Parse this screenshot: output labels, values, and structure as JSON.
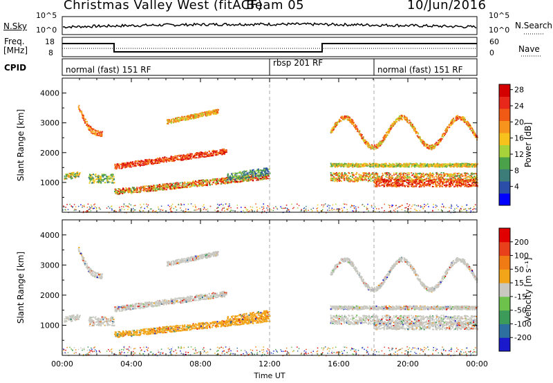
{
  "header": {
    "title": "Christmas Valley West (fitACF)",
    "beam": "Beam 05",
    "date": "10/Jun/2016"
  },
  "panels": {
    "sky_label": "N.Sky",
    "search_label": "N.Search",
    "freq_label_1": "Freq.",
    "freq_label_2": "[MHz]",
    "nave_label": "Nave",
    "cpid_label": "CPID",
    "sky_left_ticks": [
      "10^5",
      "10^0"
    ],
    "sky_right_ticks": [
      "10^5",
      "10^0"
    ],
    "freq_left_ticks": [
      "18",
      "8"
    ],
    "freq_right_ticks": [
      "60",
      "0"
    ]
  },
  "cpid_segments": [
    {
      "label": "normal (fast) 151 RF",
      "start": 0,
      "end": 12
    },
    {
      "label": "rbsp 201 RF",
      "start": 12,
      "end": 18
    },
    {
      "label": "normal (fast) 151 RF",
      "start": 18,
      "end": 24
    }
  ],
  "chart_data": [
    {
      "type": "heatmap",
      "panel": "power",
      "ylabel": "Slant Range [km]",
      "xlabel": "Time UT",
      "xlim": [
        0,
        24
      ],
      "ylim": [
        0,
        4500
      ],
      "yticks": [
        "1000",
        "2000",
        "3000",
        "4000"
      ],
      "xticks": [
        "00:00",
        "04:00",
        "08:00",
        "12:00",
        "16:00",
        "20:00",
        "00:00"
      ],
      "colorbar": {
        "label": "Power [dB]",
        "ticks": [
          "4",
          "8",
          "12",
          "16",
          "20",
          "24",
          "28"
        ],
        "colors": [
          "#0000ff",
          "#2b4fa8",
          "#3c7d7a",
          "#4aa14a",
          "#a8d23a",
          "#f6c21b",
          "#f7941d",
          "#f05a14",
          "#e8281b",
          "#d40000"
        ]
      }
    },
    {
      "type": "heatmap",
      "panel": "velocity",
      "ylabel": "Slant Range [km]",
      "xlabel": "Time UT",
      "xlim": [
        0,
        24
      ],
      "ylim": [
        0,
        4500
      ],
      "yticks": [
        "1000",
        "2000",
        "3000",
        "4000"
      ],
      "xticks": [
        "00:00",
        "04:00",
        "08:00",
        "12:00",
        "16:00",
        "20:00",
        "00:00"
      ],
      "colorbar": {
        "label": "Velocity [m s⁻¹]",
        "ticks": [
          "200",
          "100",
          "50",
          "15",
          "-15",
          "-50",
          "-100",
          "-200"
        ],
        "colors": [
          "#1a1acc",
          "#2d6f9e",
          "#3d9b5a",
          "#6cc24a",
          "#c8c8c0",
          "#f3a51a",
          "#f07a14",
          "#e8401b",
          "#e00000"
        ]
      }
    }
  ]
}
